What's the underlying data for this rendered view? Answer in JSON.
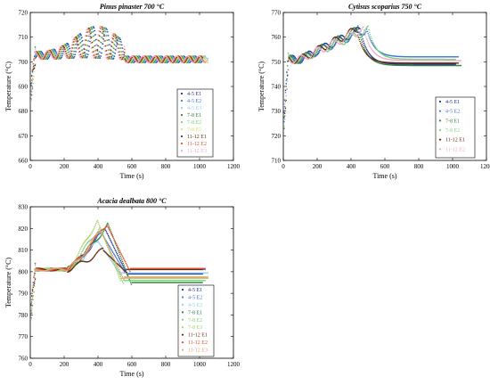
{
  "chart_data": [
    {
      "id": "pinus",
      "type": "line",
      "title": "Pinus pinaster 700 °C",
      "xlabel": "Time (s)",
      "ylabel": "Temperature (°C)",
      "xlim": [
        0,
        1200
      ],
      "ylim": [
        660,
        720
      ],
      "xticks": [
        0,
        200,
        400,
        600,
        800,
        1000,
        1200
      ],
      "yticks": [
        660,
        670,
        680,
        690,
        700,
        710,
        720
      ],
      "legend_position": "right",
      "series": [
        {
          "name": "4-5 E1",
          "color": "#1f2f8f",
          "style": "dots"
        },
        {
          "name": "4-5 E2",
          "color": "#3a78d8",
          "style": "dots"
        },
        {
          "name": "4-5 E3",
          "color": "#8fd0f0",
          "style": "dots"
        },
        {
          "name": "7-8 E1",
          "color": "#2f7f3f",
          "style": "dots"
        },
        {
          "name": "7-8 E2",
          "color": "#7fd07f",
          "style": "dots"
        },
        {
          "name": "7-8 E3",
          "color": "#d8e860",
          "style": "dots"
        },
        {
          "name": "11-12 E1",
          "color": "#6b2a10",
          "style": "dots"
        },
        {
          "name": "11-12 E2",
          "color": "#e0502a",
          "style": "dots"
        },
        {
          "name": "11-12 E3",
          "color": "#f0a8c8",
          "style": "dots"
        }
      ]
    },
    {
      "id": "cytisus",
      "type": "line",
      "title": "Cytisus scoparius 750 °C",
      "xlabel": "Time (s)",
      "ylabel": "Temperature (°C)",
      "xlim": [
        0,
        1200
      ],
      "ylim": [
        710,
        770
      ],
      "xticks": [
        0,
        200,
        400,
        600,
        800,
        1000,
        1200
      ],
      "yticks": [
        710,
        720,
        730,
        740,
        750,
        760,
        770
      ],
      "legend_position": "right",
      "series": [
        {
          "name": "4-5 E1",
          "color": "#1f2f8f",
          "style": "dots"
        },
        {
          "name": "4-5 E2",
          "color": "#3a78d8",
          "style": "dots"
        },
        {
          "name": "7-8 E1",
          "color": "#2f7f3f",
          "style": "dots"
        },
        {
          "name": "7-8 E2",
          "color": "#7fd07f",
          "style": "dots"
        },
        {
          "name": "11-12 E1",
          "color": "#6b2a10",
          "style": "dots"
        },
        {
          "name": "11-12 E2",
          "color": "#f0a8c8",
          "style": "dots"
        }
      ]
    },
    {
      "id": "acacia",
      "type": "line",
      "title": "Acacia dealbata 800 °C",
      "xlabel": "Time (s)",
      "ylabel": "Temperature (°C)",
      "xlim": [
        0,
        1200
      ],
      "ylim": [
        760,
        830
      ],
      "xticks": [
        0,
        200,
        400,
        600,
        800,
        1000,
        1200
      ],
      "yticks": [
        760,
        770,
        780,
        790,
        800,
        810,
        820,
        830
      ],
      "legend_position": "right",
      "series": [
        {
          "name": "4-5 E1",
          "color": "#1f2f8f",
          "style": "dots"
        },
        {
          "name": "4-5 E2",
          "color": "#3a78d8",
          "style": "dots"
        },
        {
          "name": "4-5 E3",
          "color": "#8fd0f0",
          "style": "dots"
        },
        {
          "name": "7-8 E1",
          "color": "#2f7f3f",
          "style": "dots"
        },
        {
          "name": "7-8 E2",
          "color": "#7fd07f",
          "style": "dots"
        },
        {
          "name": "7-8 E3",
          "color": "#a8d060",
          "style": "dots"
        },
        {
          "name": "11-12 E1",
          "color": "#6b2a10",
          "style": "dots"
        },
        {
          "name": "11-12 E2",
          "color": "#e0502a",
          "style": "dots"
        },
        {
          "name": "11-12 E3",
          "color": "#e8a070",
          "style": "dots"
        }
      ]
    }
  ]
}
